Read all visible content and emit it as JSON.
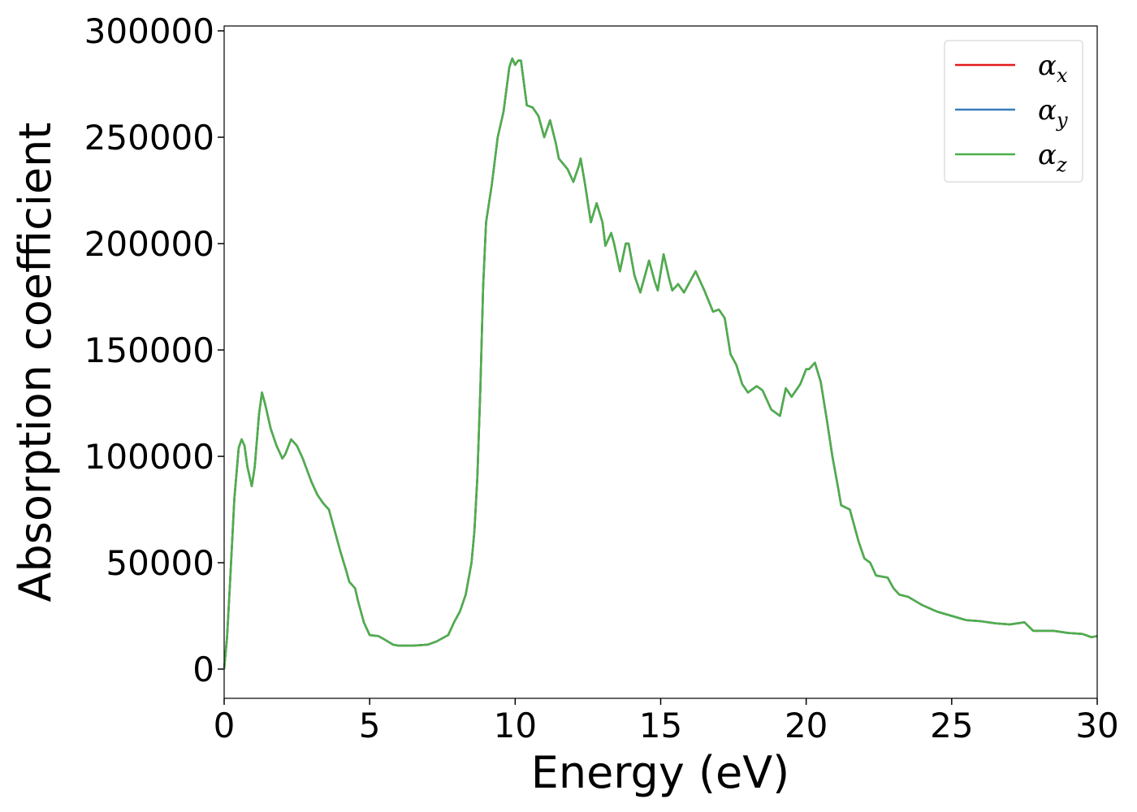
{
  "chart_data": {
    "type": "line",
    "xlabel": "Energy (eV)",
    "ylabel": "Absorption coefficient",
    "xlim": [
      0,
      30
    ],
    "ylim": [
      -13740,
      302290
    ],
    "xticks": [
      0,
      5,
      10,
      15,
      20,
      25,
      30
    ],
    "yticks": [
      0,
      50000,
      100000,
      150000,
      200000,
      250000,
      300000
    ],
    "legend": "upper right",
    "x": [
      0,
      0.1,
      0.2,
      0.35,
      0.5,
      0.6,
      0.7,
      0.8,
      0.95,
      1.05,
      1.2,
      1.3,
      1.4,
      1.6,
      1.8,
      2.0,
      2.1,
      2.3,
      2.5,
      2.7,
      3.0,
      3.2,
      3.4,
      3.6,
      3.8,
      4.0,
      4.2,
      4.3,
      4.5,
      4.6,
      4.8,
      5.0,
      5.3,
      5.5,
      5.8,
      6.0,
      6.5,
      7.0,
      7.3,
      7.7,
      7.9,
      8.1,
      8.3,
      8.5,
      8.6,
      8.7,
      8.8,
      8.9,
      9.0,
      9.2,
      9.4,
      9.6,
      9.8,
      9.9,
      10.0,
      10.1,
      10.2,
      10.4,
      10.6,
      10.8,
      11.0,
      11.2,
      11.4,
      11.5,
      11.8,
      12.0,
      12.2,
      12.25,
      12.4,
      12.6,
      12.8,
      13.0,
      13.1,
      13.3,
      13.4,
      13.6,
      13.8,
      13.9,
      14.1,
      14.3,
      14.6,
      14.8,
      14.9,
      15.1,
      15.3,
      15.4,
      15.6,
      15.8,
      16.0,
      16.2,
      16.5,
      16.8,
      17.0,
      17.2,
      17.4,
      17.6,
      17.8,
      18.0,
      18.3,
      18.5,
      18.8,
      19.1,
      19.3,
      19.5,
      19.8,
      20.0,
      20.1,
      20.3,
      20.5,
      20.7,
      20.9,
      21.1,
      21.2,
      21.5,
      21.8,
      22.0,
      22.2,
      22.4,
      22.8,
      23.0,
      23.2,
      23.5,
      24.0,
      24.5,
      25.0,
      25.5,
      26.0,
      26.5,
      27.0,
      27.5,
      27.8,
      28.5,
      29.0,
      29.5,
      29.8,
      30.0
    ],
    "series": [
      {
        "name": "αx",
        "color": "#e41a1c",
        "values": [
          0,
          15000,
          40000,
          80000,
          104000,
          108000,
          105000,
          95000,
          86000,
          95000,
          120000,
          130000,
          125000,
          113000,
          105000,
          99000,
          101000,
          108000,
          105000,
          99000,
          88000,
          82000,
          78000,
          75000,
          65000,
          55000,
          46000,
          41000,
          38000,
          32000,
          22000,
          16000,
          15500,
          14000,
          11500,
          11000,
          11000,
          11500,
          13000,
          16000,
          22000,
          27000,
          35000,
          50000,
          65000,
          90000,
          130000,
          180000,
          210000,
          228000,
          250000,
          262000,
          283000,
          287000,
          284000,
          286000,
          286000,
          265000,
          264000,
          260000,
          250000,
          258000,
          247000,
          240000,
          235000,
          229000,
          237000,
          240000,
          228000,
          210000,
          219000,
          210000,
          199000,
          205000,
          200000,
          187000,
          200000,
          200000,
          185000,
          177000,
          192000,
          182000,
          178000,
          195000,
          183000,
          178000,
          181000,
          177000,
          182000,
          187000,
          178000,
          168000,
          169000,
          165000,
          148000,
          143000,
          134000,
          130000,
          133000,
          131000,
          122000,
          119000,
          132000,
          128000,
          134000,
          141000,
          141000,
          144000,
          135000,
          118000,
          100000,
          85000,
          77000,
          75000,
          60000,
          52000,
          50000,
          44000,
          43000,
          38000,
          35000,
          34000,
          30000,
          27000,
          25000,
          23000,
          22500,
          21500,
          21000,
          22000,
          18000,
          18000,
          17000,
          16500,
          15000,
          15500
        ]
      },
      {
        "name": "αy",
        "color": "#377eb8",
        "values": [
          0,
          15000,
          40000,
          80000,
          104000,
          108000,
          105000,
          95000,
          86000,
          95000,
          120000,
          130000,
          125000,
          113000,
          105000,
          99000,
          101000,
          108000,
          105000,
          99000,
          88000,
          82000,
          78000,
          75000,
          65000,
          55000,
          46000,
          41000,
          38000,
          32000,
          22000,
          16000,
          15500,
          14000,
          11500,
          11000,
          11000,
          11500,
          13000,
          16000,
          22000,
          27000,
          35000,
          50000,
          65000,
          90000,
          130000,
          180000,
          210000,
          228000,
          250000,
          262000,
          283000,
          287000,
          284000,
          286000,
          286000,
          265000,
          264000,
          260000,
          250000,
          258000,
          247000,
          240000,
          235000,
          229000,
          237000,
          240000,
          228000,
          210000,
          219000,
          210000,
          199000,
          205000,
          200000,
          187000,
          200000,
          200000,
          185000,
          177000,
          192000,
          182000,
          178000,
          195000,
          183000,
          178000,
          181000,
          177000,
          182000,
          187000,
          178000,
          168000,
          169000,
          165000,
          148000,
          143000,
          134000,
          130000,
          133000,
          131000,
          122000,
          119000,
          132000,
          128000,
          134000,
          141000,
          141000,
          144000,
          135000,
          118000,
          100000,
          85000,
          77000,
          75000,
          60000,
          52000,
          50000,
          44000,
          43000,
          38000,
          35000,
          34000,
          30000,
          27000,
          25000,
          23000,
          22500,
          21500,
          21000,
          22000,
          18000,
          18000,
          17000,
          16500,
          15000,
          15500
        ]
      },
      {
        "name": "αz",
        "color": "#4daf4a",
        "values": [
          0,
          15000,
          40000,
          80000,
          104000,
          108000,
          105000,
          95000,
          86000,
          95000,
          120000,
          130000,
          125000,
          113000,
          105000,
          99000,
          101000,
          108000,
          105000,
          99000,
          88000,
          82000,
          78000,
          75000,
          65000,
          55000,
          46000,
          41000,
          38000,
          32000,
          22000,
          16000,
          15500,
          14000,
          11500,
          11000,
          11000,
          11500,
          13000,
          16000,
          22000,
          27000,
          35000,
          50000,
          65000,
          90000,
          130000,
          180000,
          210000,
          228000,
          250000,
          262000,
          283000,
          287000,
          284000,
          286000,
          286000,
          265000,
          264000,
          260000,
          250000,
          258000,
          247000,
          240000,
          235000,
          229000,
          237000,
          240000,
          228000,
          210000,
          219000,
          210000,
          199000,
          205000,
          200000,
          187000,
          200000,
          200000,
          185000,
          177000,
          192000,
          182000,
          178000,
          195000,
          183000,
          178000,
          181000,
          177000,
          182000,
          187000,
          178000,
          168000,
          169000,
          165000,
          148000,
          143000,
          134000,
          130000,
          133000,
          131000,
          122000,
          119000,
          132000,
          128000,
          134000,
          141000,
          141000,
          144000,
          135000,
          118000,
          100000,
          85000,
          77000,
          75000,
          60000,
          52000,
          50000,
          44000,
          43000,
          38000,
          35000,
          34000,
          30000,
          27000,
          25000,
          23000,
          22500,
          21500,
          21000,
          22000,
          18000,
          18000,
          17000,
          16500,
          15000,
          15500
        ]
      }
    ]
  }
}
